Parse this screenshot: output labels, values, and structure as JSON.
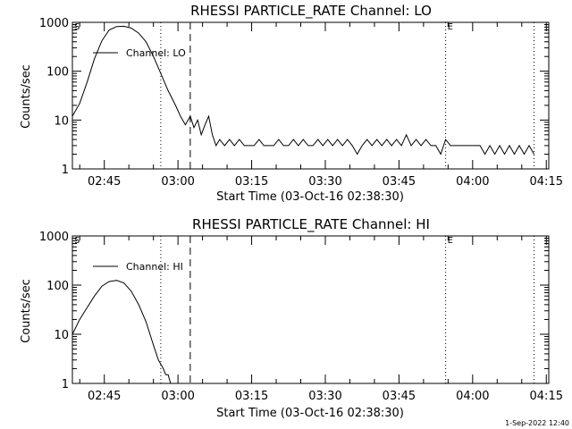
{
  "footer": {
    "timestamp": "1-Sep-2022 12:40"
  },
  "chart_data": [
    {
      "type": "line",
      "title": "RHESSI PARTICLE_RATE Channel: LO",
      "xlabel": "Start Time (03-Oct-16 02:38:30)",
      "ylabel": "Counts/sec",
      "yscale": "log",
      "ylim": [
        1,
        1000
      ],
      "xlim_minutes_after_start": [
        0,
        97
      ],
      "x_tick_labels": [
        "02:45",
        "03:00",
        "03:15",
        "03:30",
        "03:45",
        "04:00",
        "04:15"
      ],
      "y_tick_labels": [
        "1",
        "10",
        "100",
        "1000"
      ],
      "legend": {
        "entries": [
          "Channel: LO"
        ],
        "position": "top-left"
      },
      "markers": [
        {
          "label": "S",
          "time": "02:38:30",
          "style": "dotted"
        },
        {
          "label": "",
          "time": "02:56:30",
          "style": "dotted"
        },
        {
          "label": "",
          "time": "03:02:30",
          "style": "dashed"
        },
        {
          "label": "E",
          "time": "03:54:30",
          "style": "dotted"
        },
        {
          "label": "",
          "time": "04:12:30",
          "style": "dotted"
        }
      ],
      "series": [
        {
          "name": "Channel: LO",
          "x": [
            "02:38:30",
            "02:40:00",
            "02:41:30",
            "02:43:00",
            "02:44:30",
            "02:46:00",
            "02:47:30",
            "02:49:00",
            "02:50:30",
            "02:52:00",
            "02:53:30",
            "02:55:00",
            "02:56:30",
            "02:58:00",
            "02:59:30",
            "03:00:30",
            "03:01:30",
            "03:02:30",
            "03:03:15",
            "03:04:00",
            "03:04:45",
            "03:05:30",
            "03:06:15",
            "03:07:00",
            "03:07:45",
            "03:08:30",
            "03:09:30",
            "03:10:30",
            "03:11:30",
            "03:12:30",
            "03:13:30",
            "03:14:30",
            "03:15:30",
            "03:16:30",
            "03:17:30",
            "03:18:30",
            "03:19:30",
            "03:20:30",
            "03:21:30",
            "03:22:30",
            "03:23:30",
            "03:24:30",
            "03:25:30",
            "03:26:30",
            "03:27:30",
            "03:28:30",
            "03:29:30",
            "03:30:30",
            "03:31:30",
            "03:32:30",
            "03:33:30",
            "03:34:30",
            "03:35:30",
            "03:36:30",
            "03:37:30",
            "03:38:30",
            "03:39:30",
            "03:40:30",
            "03:41:30",
            "03:42:30",
            "03:43:30",
            "03:44:30",
            "03:45:30",
            "03:46:30",
            "03:47:30",
            "03:48:30",
            "03:49:30",
            "03:50:30",
            "03:51:30",
            "03:52:30",
            "03:53:30",
            "03:54:30",
            "03:55:30",
            "03:56:30",
            "03:57:30",
            "03:58:30",
            "03:59:30",
            "04:00:30",
            "04:01:30",
            "04:02:30",
            "04:03:30",
            "04:04:30",
            "04:05:30",
            "04:06:30",
            "04:07:30",
            "04:08:30",
            "04:09:30",
            "04:10:30",
            "04:11:30",
            "04:12:30"
          ],
          "y": [
            12,
            22,
            60,
            180,
            420,
            700,
            820,
            830,
            760,
            600,
            400,
            200,
            90,
            40,
            20,
            12,
            8,
            12,
            7,
            10,
            5,
            8,
            12,
            5,
            3,
            4,
            3,
            4,
            3,
            4,
            3,
            3,
            3,
            4,
            3,
            3,
            3,
            4,
            3,
            3,
            4,
            3,
            4,
            3,
            3,
            4,
            3,
            4,
            3,
            4,
            3,
            4,
            3,
            2,
            3,
            4,
            3,
            4,
            3,
            4,
            3,
            4,
            3,
            5,
            3,
            4,
            3,
            4,
            3,
            3,
            2,
            4,
            3,
            3,
            3,
            3,
            3,
            3,
            3,
            2,
            3,
            2,
            3,
            2,
            3,
            2,
            3,
            2,
            3,
            2
          ]
        }
      ]
    },
    {
      "type": "line",
      "title": "RHESSI PARTICLE_RATE Channel: HI",
      "xlabel": "Start Time (03-Oct-16 02:38:30)",
      "ylabel": "Counts/sec",
      "yscale": "log",
      "ylim": [
        1,
        1000
      ],
      "xlim_minutes_after_start": [
        0,
        97
      ],
      "x_tick_labels": [
        "02:45",
        "03:00",
        "03:15",
        "03:30",
        "03:45",
        "04:00",
        "04:15"
      ],
      "y_tick_labels": [
        "1",
        "10",
        "100",
        "1000"
      ],
      "legend": {
        "entries": [
          "Channel: HI"
        ],
        "position": "top-left"
      },
      "markers": [
        {
          "label": "S",
          "time": "02:38:30",
          "style": "dotted"
        },
        {
          "label": "",
          "time": "02:56:30",
          "style": "dotted"
        },
        {
          "label": "",
          "time": "03:02:30",
          "style": "dashed"
        },
        {
          "label": "E",
          "time": "03:54:30",
          "style": "dotted"
        },
        {
          "label": "",
          "time": "04:12:30",
          "style": "dotted"
        }
      ],
      "series": [
        {
          "name": "Channel: HI",
          "x": [
            "02:38:30",
            "02:40:00",
            "02:41:30",
            "02:43:00",
            "02:44:30",
            "02:46:00",
            "02:47:30",
            "02:49:00",
            "02:50:30",
            "02:52:00",
            "02:53:30",
            "02:55:00",
            "02:56:00",
            "02:57:00",
            "02:57:30",
            "02:58:00",
            "02:58:30"
          ],
          "y": [
            10,
            20,
            35,
            60,
            95,
            118,
            125,
            110,
            75,
            40,
            18,
            6,
            3,
            2,
            1.5,
            1.5,
            1
          ]
        }
      ]
    }
  ]
}
